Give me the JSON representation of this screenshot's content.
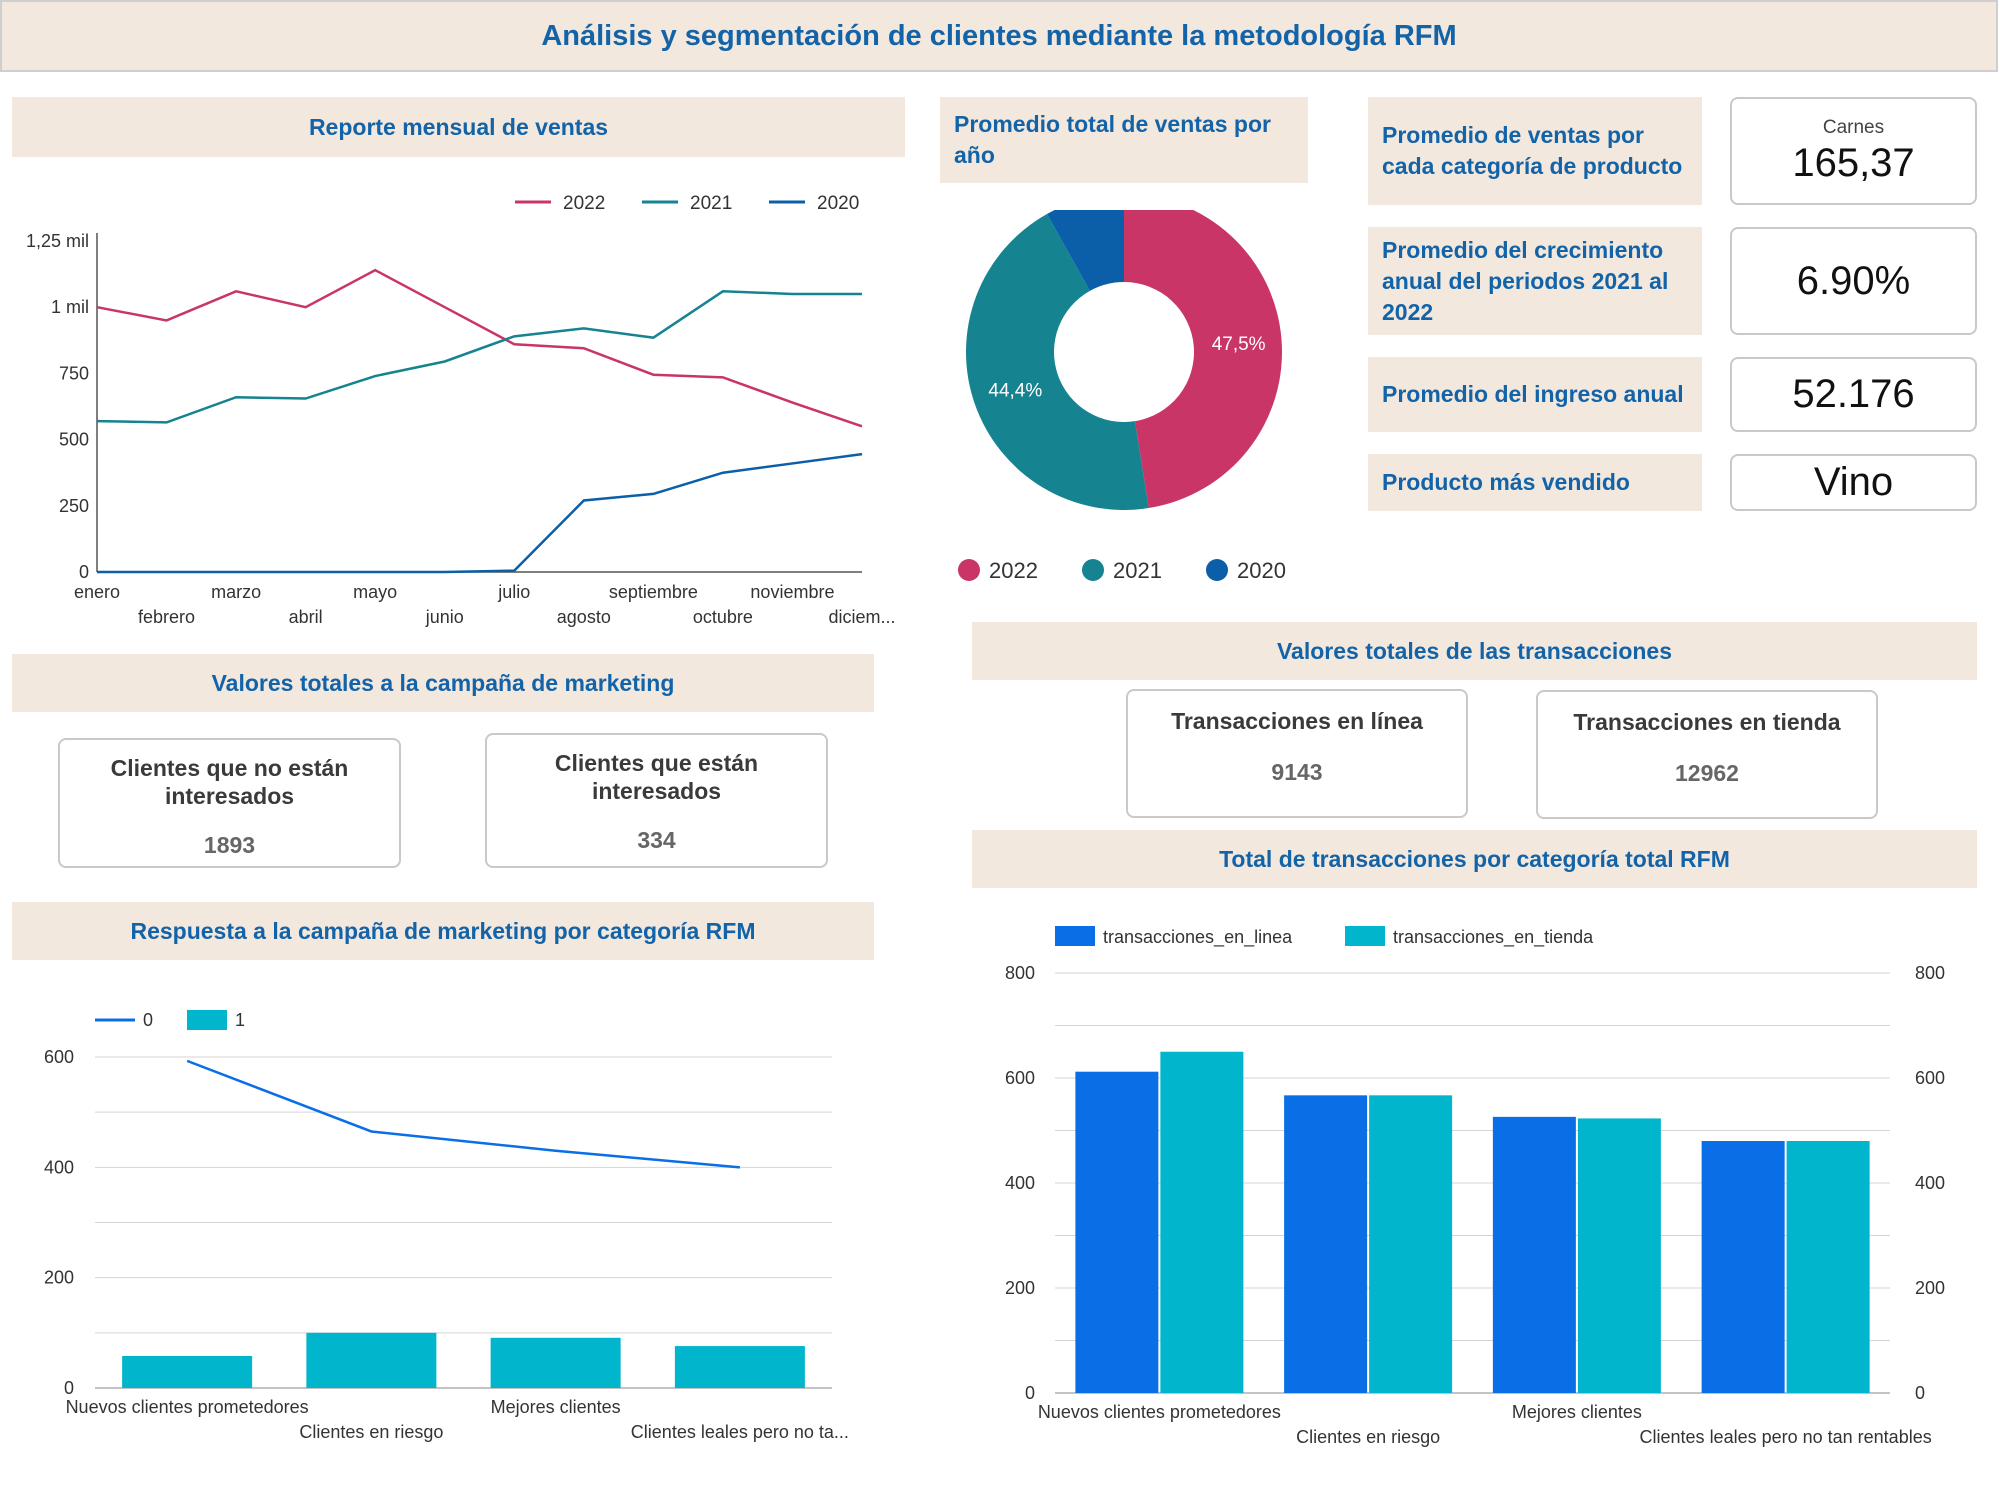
{
  "title": "Análisis y segmentación de clientes mediante la metodología RFM",
  "headers": {
    "monthly": "Reporte mensual de ventas",
    "yearly": "Promedio total de ventas por año",
    "category": "Promedio de ventas por cada categoría de producto",
    "growth": "Promedio del crecimiento anual del periodos 2021 al 2022",
    "income": "Promedio del ingreso anual",
    "topproduct": "Producto más vendido",
    "marketing": "Valores totales a la campaña de marketing",
    "response": "Respuesta a la campaña de marketing por categoría RFM",
    "transactions": "Valores totales de las transacciones",
    "rfm_tx": "Total de transacciones por categoría total RFM"
  },
  "kpis": {
    "category_label": "Carnes",
    "category_value": "165,37",
    "growth_value": "6.90%",
    "income_value": "52.176",
    "top_product": "Vino"
  },
  "marketing": {
    "not_interested_label": "Clientes que no están interesados",
    "not_interested_value": "1893",
    "interested_label": "Clientes que están interesados",
    "interested_value": "334"
  },
  "transactions": {
    "online_label": "Transacciones en línea",
    "online_value": "9143",
    "store_label": "Transacciones en tienda",
    "store_value": "12962"
  },
  "colors": {
    "s2022": "#c93566",
    "s2021": "#158390",
    "s2020": "#0b5ea8",
    "blue": "#0a6ee6",
    "cyan": "#00b5cc",
    "header_bg": "#f3e8de",
    "header_text": "#1363a8"
  },
  "chart_data": [
    {
      "id": "monthly",
      "type": "line",
      "categories": [
        "enero",
        "febrero",
        "marzo",
        "abril",
        "mayo",
        "junio",
        "julio",
        "agosto",
        "septiembre",
        "octubre",
        "noviembre",
        "diciem..."
      ],
      "series": [
        {
          "name": "2022",
          "color": "#c93566",
          "values": [
            1000,
            950,
            1060,
            1000,
            1140,
            1000,
            860,
            845,
            745,
            735,
            640,
            550
          ]
        },
        {
          "name": "2021",
          "color": "#158390",
          "values": [
            570,
            565,
            660,
            655,
            740,
            795,
            890,
            920,
            885,
            1060,
            1050,
            1050
          ]
        },
        {
          "name": "2020",
          "color": "#0b5ea8",
          "values": [
            0,
            0,
            0,
            0,
            0,
            0,
            5,
            270,
            295,
            375,
            410,
            445
          ]
        }
      ],
      "yticks": [
        "0",
        "250",
        "500",
        "750",
        "1 mil",
        "1,25 mil"
      ],
      "ylim": [
        0,
        1250
      ],
      "legend": "top-right"
    },
    {
      "id": "yearly",
      "type": "pie",
      "donut": true,
      "labels": [
        "2022",
        "2021",
        "2020"
      ],
      "values": [
        47.5,
        44.4,
        8.1
      ],
      "value_labels": [
        "47,5%",
        "44,4%",
        ""
      ],
      "colors": [
        "#c93566",
        "#158390",
        "#0b5ea8"
      ],
      "legend": "bottom"
    },
    {
      "id": "response",
      "type": "bar",
      "categories": [
        "Nuevos clientes prometedores",
        "Clientes en riesgo",
        "Mejores clientes",
        "Clientes leales pero no ta..."
      ],
      "series": [
        {
          "name": "0",
          "kind": "line",
          "color": "#0a6ee6",
          "values": [
            593,
            465,
            430,
            400
          ]
        },
        {
          "name": "1",
          "kind": "bar",
          "color": "#00b5cc",
          "values": [
            58,
            100,
            91,
            76
          ]
        }
      ],
      "yticks": [
        "0",
        "200",
        "400",
        "600"
      ],
      "ylim": [
        0,
        650
      ],
      "legend": "top-left"
    },
    {
      "id": "rfm_tx",
      "type": "bar",
      "categories": [
        "Nuevos clientes prometedores",
        "Clientes en riesgo",
        "Mejores clientes",
        "Clientes leales pero no tan rentables"
      ],
      "series": [
        {
          "name": "transacciones_en_linea",
          "color": "#0a6ee6",
          "values": [
            612,
            567,
            526,
            480
          ]
        },
        {
          "name": "transacciones_en_tienda",
          "color": "#00b5cc",
          "values": [
            650,
            567,
            523,
            480
          ]
        }
      ],
      "yticks": [
        "0",
        "200",
        "400",
        "600",
        "800"
      ],
      "ylim": [
        0,
        800
      ],
      "legend": "top-left"
    }
  ]
}
